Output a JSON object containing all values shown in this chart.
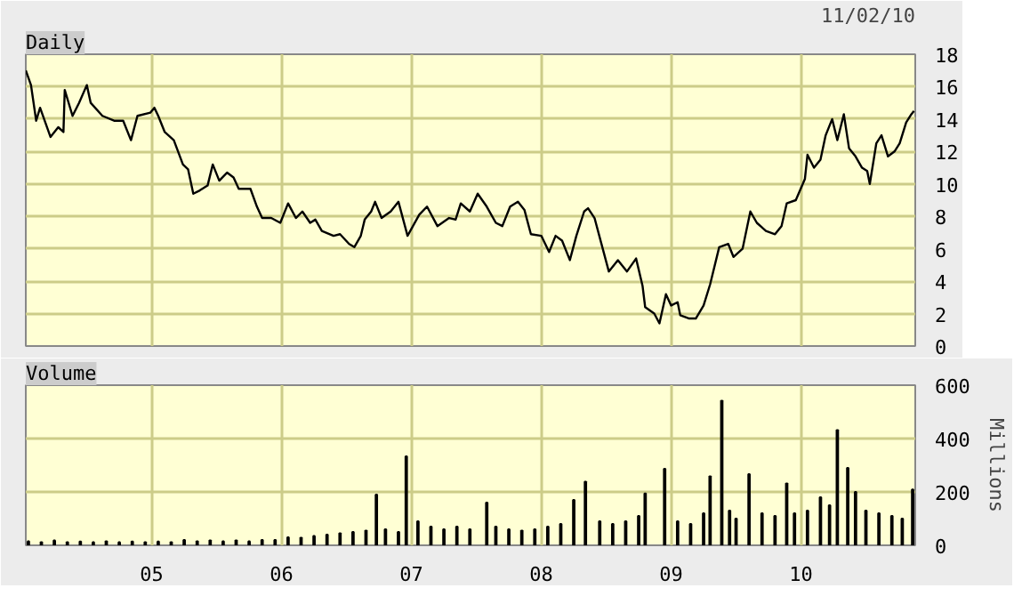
{
  "chart_data": [
    {
      "type": "line",
      "annotations": [
        "11/02/10"
      ],
      "grid": true,
      "tick_labels": "y",
      "xlim": [
        2004.03,
        2010.88
      ],
      "xticks": [
        {
          "value": 2005,
          "label": null
        },
        {
          "value": 2006,
          "label": null
        },
        {
          "value": 2007,
          "label": null
        },
        {
          "value": 2008,
          "label": null
        },
        {
          "value": 2009,
          "label": null
        },
        {
          "value": 2010,
          "label": null
        }
      ],
      "ylim": [
        0,
        18
      ],
      "yticks": [
        0,
        2,
        4,
        6,
        8,
        10,
        12,
        14,
        16,
        18
      ],
      "series": [
        {
          "name": "Daily",
          "color": "#000000",
          "x": [
            2004.03,
            2004.07,
            2004.11,
            2004.14,
            2004.22,
            2004.28,
            2004.32,
            2004.33,
            2004.39,
            2004.44,
            2004.5,
            2004.53,
            2004.62,
            2004.71,
            2004.78,
            2004.84,
            2004.89,
            2004.99,
            2005.02,
            2005.05,
            2005.1,
            2005.17,
            2005.24,
            2005.28,
            2005.32,
            2005.37,
            2005.43,
            2005.47,
            2005.52,
            2005.58,
            2005.63,
            2005.67,
            2005.76,
            2005.81,
            2005.85,
            2005.92,
            2005.99,
            2006.05,
            2006.11,
            2006.16,
            2006.22,
            2006.26,
            2006.31,
            2006.4,
            2006.45,
            2006.52,
            2006.56,
            2006.61,
            2006.64,
            2006.69,
            2006.72,
            2006.77,
            2006.84,
            2006.9,
            2006.97,
            2007.06,
            2007.12,
            2007.2,
            2007.29,
            2007.34,
            2007.38,
            2007.45,
            2007.51,
            2007.58,
            2007.65,
            2007.7,
            2007.76,
            2007.82,
            2007.87,
            2007.92,
            2008.0,
            2008.06,
            2008.11,
            2008.16,
            2008.22,
            2008.27,
            2008.33,
            2008.36,
            2008.41,
            2008.46,
            2008.52,
            2008.59,
            2008.66,
            2008.73,
            2008.78,
            2008.8,
            2008.87,
            2008.91,
            2008.96,
            2009.0,
            2009.05,
            2009.07,
            2009.14,
            2009.19,
            2009.25,
            2009.3,
            2009.37,
            2009.44,
            2009.48,
            2009.55,
            2009.61,
            2009.66,
            2009.73,
            2009.8,
            2009.85,
            2009.89,
            2009.96,
            2010.03,
            2010.05,
            2010.1,
            2010.15,
            2010.19,
            2010.24,
            2010.28,
            2010.33,
            2010.37,
            2010.42,
            2010.47,
            2010.51,
            2010.53,
            2010.58,
            2010.62,
            2010.67,
            2010.72,
            2010.76,
            2010.81,
            2010.85,
            2010.87
          ],
          "values": [
            17.0,
            16.1,
            13.9,
            14.7,
            12.9,
            13.5,
            13.2,
            15.8,
            14.2,
            15.0,
            16.1,
            15.0,
            14.2,
            13.9,
            13.9,
            12.7,
            14.2,
            14.4,
            14.7,
            14.2,
            13.2,
            12.7,
            11.2,
            10.9,
            9.4,
            9.6,
            9.9,
            11.2,
            10.2,
            10.7,
            10.4,
            9.7,
            9.7,
            8.6,
            7.9,
            7.9,
            7.6,
            8.8,
            7.9,
            8.3,
            7.6,
            7.8,
            7.1,
            6.8,
            6.9,
            6.3,
            6.1,
            6.8,
            7.8,
            8.3,
            8.9,
            7.9,
            8.3,
            8.9,
            6.8,
            8.1,
            8.6,
            7.4,
            7.9,
            7.8,
            8.8,
            8.3,
            9.4,
            8.6,
            7.6,
            7.4,
            8.6,
            8.9,
            8.4,
            6.9,
            6.8,
            5.8,
            6.8,
            6.5,
            5.3,
            6.8,
            8.3,
            8.5,
            7.9,
            6.4,
            4.6,
            5.3,
            4.6,
            5.4,
            3.7,
            2.4,
            2.0,
            1.4,
            3.2,
            2.5,
            2.7,
            1.9,
            1.7,
            1.7,
            2.5,
            3.8,
            6.1,
            6.3,
            5.5,
            6.0,
            8.3,
            7.6,
            7.1,
            6.9,
            7.4,
            8.8,
            9.0,
            10.3,
            11.8,
            11.0,
            11.5,
            13.0,
            14.0,
            12.7,
            14.3,
            12.2,
            11.7,
            11.0,
            10.8,
            10.0,
            12.5,
            13.0,
            11.7,
            12.0,
            12.5,
            13.8,
            14.3,
            14.5
          ]
        }
      ]
    },
    {
      "type": "bar",
      "grid": true,
      "ylabel": "Millions",
      "xlim": [
        2004.03,
        2010.88
      ],
      "xticks": [
        {
          "value": 2005,
          "label": "05"
        },
        {
          "value": 2006,
          "label": "06"
        },
        {
          "value": 2007,
          "label": "07"
        },
        {
          "value": 2008,
          "label": "08"
        },
        {
          "value": 2009,
          "label": "09"
        },
        {
          "value": 2010,
          "label": "10"
        }
      ],
      "ylim": [
        0,
        600
      ],
      "yticks": [
        0,
        200,
        400,
        600
      ],
      "series": [
        {
          "name": "Volume",
          "color": "#000000",
          "x": [
            2004.05,
            2004.15,
            2004.25,
            2004.35,
            2004.45,
            2004.55,
            2004.65,
            2004.75,
            2004.85,
            2004.95,
            2005.05,
            2005.15,
            2005.25,
            2005.35,
            2005.45,
            2005.55,
            2005.65,
            2005.75,
            2005.85,
            2005.95,
            2006.05,
            2006.15,
            2006.25,
            2006.35,
            2006.45,
            2006.55,
            2006.65,
            2006.73,
            2006.8,
            2006.9,
            2006.96,
            2007.05,
            2007.15,
            2007.25,
            2007.35,
            2007.45,
            2007.58,
            2007.65,
            2007.75,
            2007.85,
            2007.95,
            2008.05,
            2008.15,
            2008.25,
            2008.34,
            2008.45,
            2008.55,
            2008.65,
            2008.75,
            2008.8,
            2008.95,
            2009.05,
            2009.15,
            2009.25,
            2009.3,
            2009.39,
            2009.45,
            2009.5,
            2009.6,
            2009.7,
            2009.8,
            2009.89,
            2009.95,
            2010.05,
            2010.15,
            2010.22,
            2010.28,
            2010.36,
            2010.42,
            2010.5,
            2010.6,
            2010.7,
            2010.78,
            2010.86
          ],
          "values": [
            15,
            12,
            18,
            12,
            14,
            12,
            15,
            12,
            14,
            12,
            14,
            12,
            20,
            15,
            18,
            15,
            18,
            15,
            20,
            20,
            30,
            28,
            35,
            40,
            45,
            50,
            55,
            190,
            60,
            50,
            333,
            90,
            70,
            60,
            70,
            60,
            160,
            70,
            60,
            55,
            60,
            70,
            80,
            170,
            238,
            90,
            80,
            90,
            110,
            194,
            287,
            90,
            80,
            120,
            258,
            542,
            130,
            100,
            267,
            120,
            110,
            232,
            120,
            130,
            180,
            150,
            432,
            290,
            200,
            130,
            120,
            110,
            100,
            209
          ]
        }
      ]
    }
  ]
}
